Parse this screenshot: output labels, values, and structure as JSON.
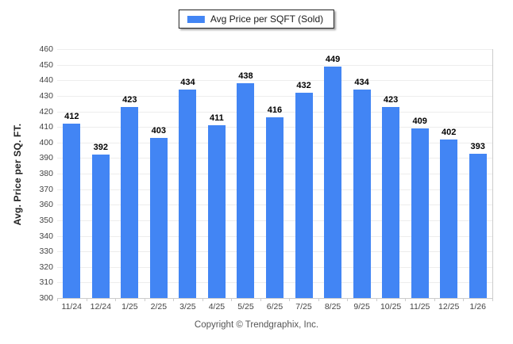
{
  "chart_data": {
    "type": "bar",
    "title": "",
    "legend": "Avg Price per SQFT (Sold)",
    "ylabel": "Avg. Price per SQ. FT.",
    "xlabel": "",
    "footer": "Copyright © Trendgraphix, Inc.",
    "categories": [
      "11/24",
      "12/24",
      "1/25",
      "2/25",
      "3/25",
      "4/25",
      "5/25",
      "6/25",
      "7/25",
      "8/25",
      "9/25",
      "10/25",
      "11/25",
      "12/25",
      "1/26"
    ],
    "values": [
      412,
      392,
      423,
      403,
      434,
      411,
      438,
      416,
      432,
      449,
      434,
      423,
      409,
      402,
      393
    ],
    "ylim": [
      300,
      460
    ],
    "ytick_step": 10,
    "grid": "horizontal",
    "legend_position": "top-center",
    "colors": {
      "bar": "#4285F4",
      "grid": "#ededed",
      "axis": "#cccccc",
      "value_label": "#000000",
      "tick_label": "#444444",
      "footer": "#555555",
      "legend_border": "#222222"
    }
  }
}
